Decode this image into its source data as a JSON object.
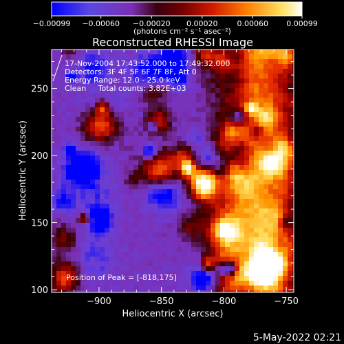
{
  "chart_data": {
    "type": "heatmap",
    "title": "Reconstructed RHESSI Image",
    "xlabel": "Heliocentric X (arcsec)",
    "ylabel": "Heliocentric Y (arcsec)",
    "xlim": [
      -938,
      -744
    ],
    "ylim": [
      98,
      279
    ],
    "x_ticks": [
      -900,
      -850,
      -800,
      -750
    ],
    "y_ticks": [
      100,
      150,
      200,
      250
    ],
    "x_tick_labels": [
      "−900",
      "−850",
      "−800",
      "−750"
    ],
    "y_tick_labels": [
      "100",
      "150",
      "200",
      "250"
    ],
    "colorbar": {
      "min": -0.00099,
      "max": 0.00099,
      "tick_labels": [
        "−0.00099",
        "−0.00060",
        "−0.00020",
        "0.00020",
        "0.00060",
        "0.00099"
      ],
      "units_label": "(photons cm⁻² s⁻¹ asec⁻²)",
      "colormap": [
        "#0000ff",
        "#6a3fd6",
        "#7a30b5",
        "#3a0000",
        "#a00000",
        "#e83000",
        "#ff9500",
        "#ffe060",
        "#ffffff"
      ]
    },
    "peak": {
      "x": -818,
      "y": 175
    },
    "grid": false,
    "annotation": {
      "time_range": "17-Nov-2004 17:43:52.000 to 17:49:32.000",
      "detectors": "Detectors: 3F 4F 5F 6F 7F 8F, Att 0",
      "energy_range": "Energy Range: 12.0 - 25.0 keV",
      "method_counts": "Clean     Total counts: 3.82E+03",
      "peak_text": "Position of Peak = [-818,175]"
    }
  },
  "footer": {
    "date": "5-May-2022 02:21"
  }
}
